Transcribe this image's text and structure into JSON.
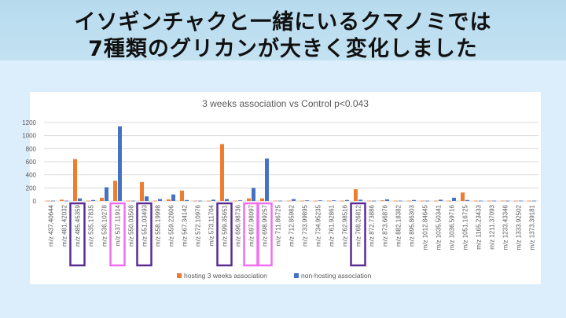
{
  "slide": {
    "heading_line1": "イソギンチャクと一緒にいるクマノミでは",
    "heading_line2": "7種類のグリカンが大きく変化しました"
  },
  "highlight_colors": {
    "purple": "#5b2d91",
    "pink": "#f06ef0"
  },
  "highlights": [
    {
      "category": "m/z 485.45359",
      "color": "purple"
    },
    {
      "category": "m/z 537.11914",
      "color": "pink"
    },
    {
      "category": "m/z 551.03493",
      "color": "purple"
    },
    {
      "category": "m/z 599.35651",
      "color": "purple"
    },
    {
      "category": "m/z 697.98097",
      "color": "pink"
    },
    {
      "category": "m/z 698.99257",
      "color": "pink"
    },
    {
      "category": "m/z 768.26812",
      "color": "purple"
    }
  ],
  "chart_data": {
    "type": "bar",
    "title": "3 weeks association vs Control p<0.043",
    "xlabel": "",
    "ylabel": "",
    "ylim": [
      0,
      1200
    ],
    "yticks": [
      0,
      200,
      400,
      600,
      800,
      1000,
      1200
    ],
    "grid": true,
    "legend_position": "bottom",
    "categories": [
      "m/z 437.40644",
      "m/z 481.42032",
      "m/z 485.45359",
      "m/z 535.17835",
      "m/z 536.10278",
      "m/z 537.11914",
      "m/z 550.03508",
      "m/z 551.03493",
      "m/z 558.19998",
      "m/z 559.22606",
      "m/z 567.34142",
      "m/z 572.10976",
      "m/z 573.11704",
      "m/z 599.35651",
      "m/z 696.98736",
      "m/z 697.98097",
      "m/z 698.99257",
      "m/z 711.86725",
      "m/z 712.85982",
      "m/z 733.99895",
      "m/z 734.95235",
      "m/z 761.92861",
      "m/z 762.98516",
      "m/z 768.26812",
      "m/z 872.73886",
      "m/z 873.66876",
      "m/z 882.18382",
      "m/z 895.86303",
      "m/z 1012.84645",
      "m/z 1035.50341",
      "m/z 1036.59716",
      "m/z 1051.16725",
      "m/z 1165.23433",
      "m/z 1211.37093",
      "m/z 1233.43346",
      "m/z 1333.92502",
      "m/z 1373.39181"
    ],
    "series": [
      {
        "name": "hosting 3 weeks association",
        "color": "#ed7d31",
        "values": [
          5,
          20,
          640,
          5,
          50,
          310,
          5,
          290,
          5,
          25,
          160,
          5,
          5,
          870,
          5,
          40,
          40,
          5,
          5,
          5,
          5,
          5,
          5,
          180,
          5,
          10,
          5,
          5,
          5,
          5,
          5,
          130,
          5,
          5,
          5,
          5,
          5
        ]
      },
      {
        "name": "non-hosting association",
        "color": "#4472c4",
        "values": [
          5,
          5,
          40,
          15,
          210,
          1140,
          5,
          70,
          30,
          100,
          15,
          5,
          20,
          30,
          10,
          200,
          650,
          5,
          30,
          10,
          10,
          10,
          15,
          20,
          5,
          25,
          5,
          15,
          5,
          20,
          50,
          15,
          5,
          5,
          5,
          5,
          5
        ]
      }
    ]
  }
}
